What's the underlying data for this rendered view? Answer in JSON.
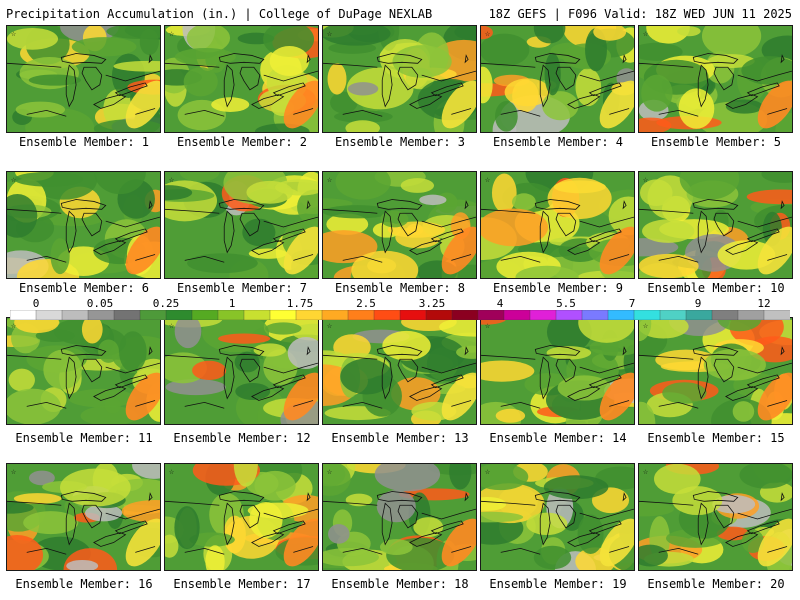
{
  "header": {
    "title": "Precipitation Accumulation (in.) | College of DuPage NEXLAB",
    "run_info": "18Z GEFS | F096 Valid: 18Z WED JUN 11 2025"
  },
  "panels": [
    {
      "label": "Ensemble Member: 1"
    },
    {
      "label": "Ensemble Member: 2"
    },
    {
      "label": "Ensemble Member: 3"
    },
    {
      "label": "Ensemble Member: 4"
    },
    {
      "label": "Ensemble Member: 5"
    },
    {
      "label": "Ensemble Member: 6"
    },
    {
      "label": "Ensemble Member: 7"
    },
    {
      "label": "Ensemble Member: 8"
    },
    {
      "label": "Ensemble Member: 9"
    },
    {
      "label": "Ensemble Member: 10"
    },
    {
      "label": "Ensemble Member: 11"
    },
    {
      "label": "Ensemble Member: 12"
    },
    {
      "label": "Ensemble Member: 13"
    },
    {
      "label": "Ensemble Member: 14"
    },
    {
      "label": "Ensemble Member: 15"
    },
    {
      "label": "Ensemble Member: 16"
    },
    {
      "label": "Ensemble Member: 17"
    },
    {
      "label": "Ensemble Member: 18"
    },
    {
      "label": "Ensemble Member: 19"
    },
    {
      "label": "Ensemble Member: 20"
    }
  ],
  "colorbar": {
    "labels": [
      "0",
      "0.05",
      "0.25",
      "1",
      "1.75",
      "2.5",
      "3.25",
      "4",
      "5.5",
      "7",
      "9",
      "12"
    ],
    "colors": [
      "#ffffff",
      "#d9d9d9",
      "#bdbdbd",
      "#969696",
      "#737373",
      "#4e9a3a",
      "#2e8b2e",
      "#55aa22",
      "#88c428",
      "#c8e030",
      "#ffff33",
      "#ffd633",
      "#ffaa22",
      "#ff7f1a",
      "#ff4d14",
      "#e60f0f",
      "#b30a0a",
      "#8b0020",
      "#a0005a",
      "#cc0099",
      "#e020d8",
      "#b050ff",
      "#7a7aff",
      "#33bbff",
      "#33e0e0",
      "#4fd1c5",
      "#3aa89e",
      "#7f7f7f",
      "#a0a0a0",
      "#c0c0c0"
    ]
  }
}
